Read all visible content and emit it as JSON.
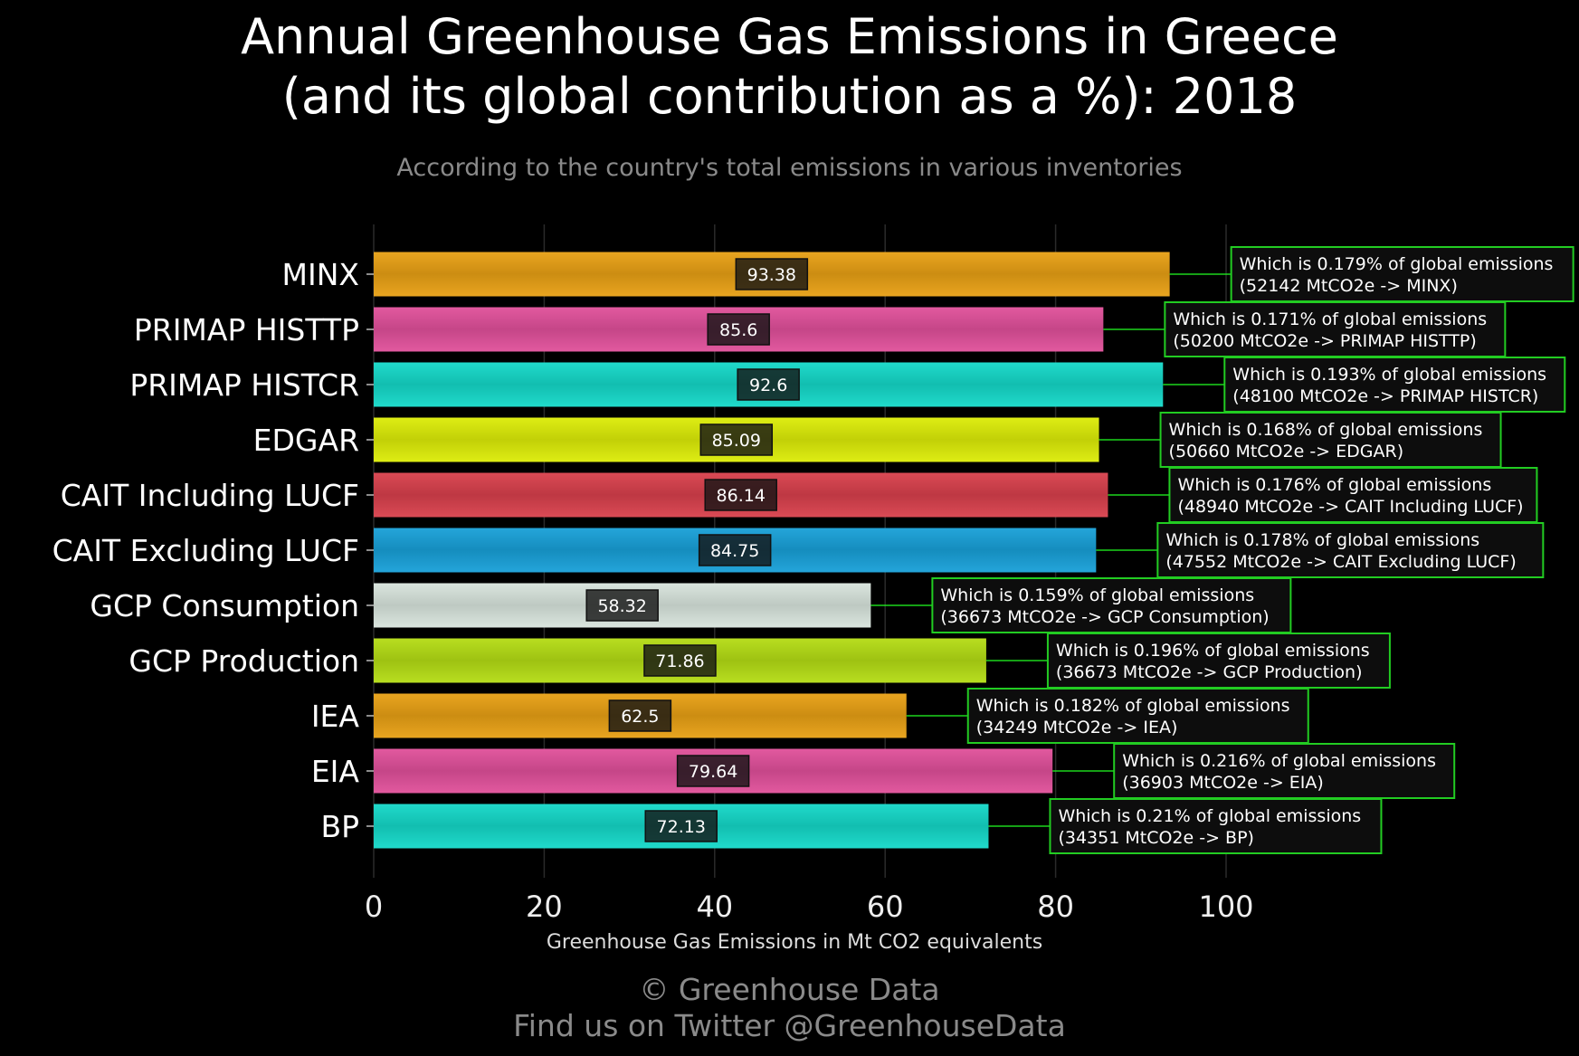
{
  "header": {
    "title_line1": "Annual Greenhouse Gas Emissions in Greece",
    "title_line2": "(and its global contribution as a %): 2018",
    "subtitle": "According to the country's total emissions in various inventories"
  },
  "footer": {
    "copyright": "© Greenhouse Data",
    "twitter": "Find us on Twitter @GreenhouseData"
  },
  "chart_data": {
    "type": "bar",
    "orientation": "horizontal",
    "title": "Annual Greenhouse Gas Emissions in Greece (and its global contribution as a %): 2018",
    "subtitle": "According to the country's total emissions in various inventories",
    "xlabel": "Greenhouse Gas Emissions in Mt CO2 equivalents",
    "ylabel": "",
    "xlim": [
      0,
      120
    ],
    "xticks": [
      0,
      20,
      40,
      60,
      80,
      100
    ],
    "grid": true,
    "categories": [
      "MINX",
      "PRIMAP HISTTP",
      "PRIMAP HISTCR",
      "EDGAR",
      "CAIT Including LUCF",
      "CAIT Excluding LUCF",
      "GCP Consumption",
      "GCP Production",
      "IEA",
      "EIA",
      "BP"
    ],
    "values": [
      93.38,
      85.6,
      92.6,
      85.09,
      86.14,
      84.75,
      58.32,
      71.86,
      62.5,
      79.64,
      72.13
    ],
    "value_labels": [
      "93.38",
      "85.6",
      "92.6",
      "85.09",
      "86.14",
      "84.75",
      "58.32",
      "71.86",
      "62.5",
      "79.64",
      "72.13"
    ],
    "colors": [
      "#e8a014",
      "#e0509a",
      "#14d8c8",
      "#dcec08",
      "#d8404c",
      "#18a0d8",
      "#d8e4dc",
      "#b4dc14",
      "#e8a014",
      "#e0509a",
      "#14d8c8"
    ],
    "annotations": [
      {
        "line1": "Which is 0.179% of global emissions",
        "line2": "(52142 MtCO2e -> MINX)"
      },
      {
        "line1": "Which is 0.171% of global emissions",
        "line2": "(50200 MtCO2e -> PRIMAP HISTTP)"
      },
      {
        "line1": "Which is 0.193% of global emissions",
        "line2": "(48100 MtCO2e -> PRIMAP HISTCR)"
      },
      {
        "line1": "Which is 0.168% of global emissions",
        "line2": "(50660 MtCO2e -> EDGAR)"
      },
      {
        "line1": "Which is 0.176% of global emissions",
        "line2": "(48940 MtCO2e -> CAIT Including LUCF)"
      },
      {
        "line1": "Which is 0.178% of global emissions",
        "line2": "(47552 MtCO2e -> CAIT Excluding LUCF)"
      },
      {
        "line1": "Which is 0.159% of global emissions",
        "line2": "(36673 MtCO2e -> GCP Consumption)"
      },
      {
        "line1": "Which is 0.196% of global emissions",
        "line2": "(36673 MtCO2e -> GCP Production)"
      },
      {
        "line1": "Which is 0.182% of global emissions",
        "line2": "(34249 MtCO2e -> IEA)"
      },
      {
        "line1": "Which is 0.216% of global emissions",
        "line2": "(36903 MtCO2e -> EIA)"
      },
      {
        "line1": "Which is 0.21% of global emissions",
        "line2": "(34351 MtCO2e -> BP)"
      }
    ],
    "annotation_border_color": "#22cc22",
    "connector_color": "#22ff22"
  }
}
